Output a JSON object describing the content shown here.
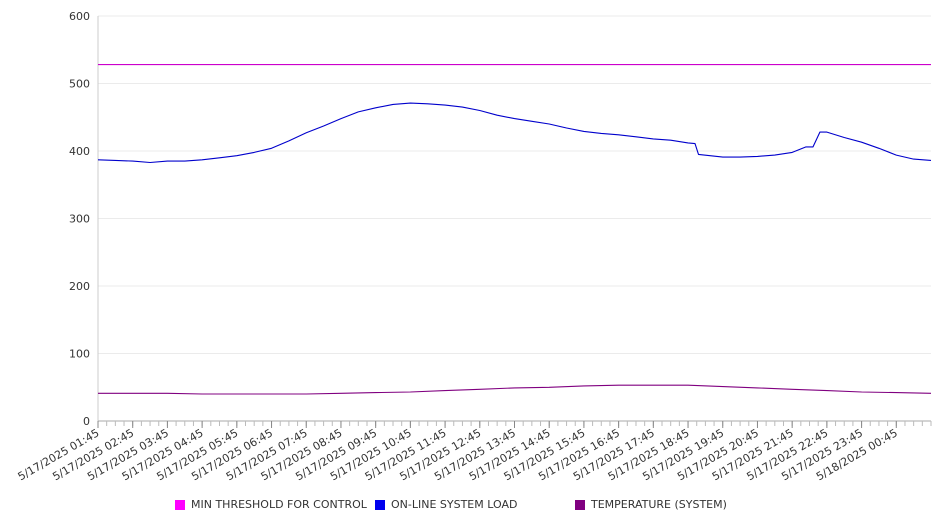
{
  "chart_data": {
    "type": "line",
    "ylim": [
      0,
      600
    ],
    "yticks": [
      0,
      100,
      200,
      300,
      400,
      500,
      600
    ],
    "x_tick_labels": [
      "5/17/2025 01:45",
      "5/17/2025 02:45",
      "5/17/2025 03:45",
      "5/17/2025 04:45",
      "5/17/2025 05:45",
      "5/17/2025 06:45",
      "5/17/2025 07:45",
      "5/17/2025 08:45",
      "5/17/2025 09:45",
      "5/17/2025 10:45",
      "5/17/2025 11:45",
      "5/17/2025 12:45",
      "5/17/2025 13:45",
      "5/17/2025 14:45",
      "5/17/2025 15:45",
      "5/17/2025 16:45",
      "5/17/2025 17:45",
      "5/17/2025 18:45",
      "5/17/2025 19:45",
      "5/17/2025 20:45",
      "5/17/2025 21:45",
      "5/17/2025 22:45",
      "5/17/2025 23:45",
      "5/18/2025 00:45"
    ],
    "x_hours": [
      0,
      24
    ],
    "grid": true,
    "legend_position": "bottom",
    "series": [
      {
        "name": "MIN THRESHOLD FOR CONTROL",
        "color": "#cc00cc",
        "points": [
          [
            0,
            528
          ],
          [
            24,
            528
          ]
        ]
      },
      {
        "name": "ON-LINE SYSTEM LOAD",
        "color": "#0000cc",
        "points": [
          [
            0,
            387
          ],
          [
            0.5,
            386
          ],
          [
            1,
            385
          ],
          [
            1.5,
            383
          ],
          [
            2,
            385
          ],
          [
            2.5,
            385
          ],
          [
            3,
            387
          ],
          [
            3.5,
            390
          ],
          [
            4,
            393
          ],
          [
            4.5,
            398
          ],
          [
            5,
            404
          ],
          [
            5.5,
            415
          ],
          [
            6,
            427
          ],
          [
            6.5,
            437
          ],
          [
            7,
            448
          ],
          [
            7.5,
            458
          ],
          [
            8,
            464
          ],
          [
            8.5,
            469
          ],
          [
            9,
            471
          ],
          [
            9.5,
            470
          ],
          [
            10,
            468
          ],
          [
            10.5,
            465
          ],
          [
            11,
            460
          ],
          [
            11.5,
            453
          ],
          [
            12,
            448
          ],
          [
            12.5,
            444
          ],
          [
            13,
            440
          ],
          [
            13.5,
            434
          ],
          [
            14,
            429
          ],
          [
            14.5,
            426
          ],
          [
            15,
            424
          ],
          [
            15.5,
            421
          ],
          [
            16,
            418
          ],
          [
            16.5,
            416
          ],
          [
            17,
            412
          ],
          [
            17.2,
            411
          ],
          [
            17.3,
            395
          ],
          [
            18,
            391
          ],
          [
            18.5,
            391
          ],
          [
            19,
            392
          ],
          [
            19.5,
            394
          ],
          [
            20,
            398
          ],
          [
            20.4,
            406
          ],
          [
            20.6,
            406
          ],
          [
            20.8,
            428
          ],
          [
            21,
            428
          ],
          [
            21.5,
            420
          ],
          [
            22,
            413
          ],
          [
            22.5,
            404
          ],
          [
            23,
            394
          ],
          [
            23.5,
            388
          ],
          [
            24,
            386
          ]
        ]
      },
      {
        "name": "TEMPERATURE (SYSTEM)",
        "color": "#800080",
        "points": [
          [
            0,
            41
          ],
          [
            2,
            41
          ],
          [
            3,
            40
          ],
          [
            6,
            40
          ],
          [
            7,
            41
          ],
          [
            8,
            42
          ],
          [
            9,
            43
          ],
          [
            10,
            45
          ],
          [
            11,
            47
          ],
          [
            12,
            49
          ],
          [
            13,
            50
          ],
          [
            14,
            52
          ],
          [
            15,
            53
          ],
          [
            16,
            53
          ],
          [
            17,
            53
          ],
          [
            18,
            51
          ],
          [
            19,
            49
          ],
          [
            20,
            47
          ],
          [
            21,
            45
          ],
          [
            22,
            43
          ],
          [
            23,
            42
          ],
          [
            24,
            41
          ]
        ]
      }
    ]
  }
}
